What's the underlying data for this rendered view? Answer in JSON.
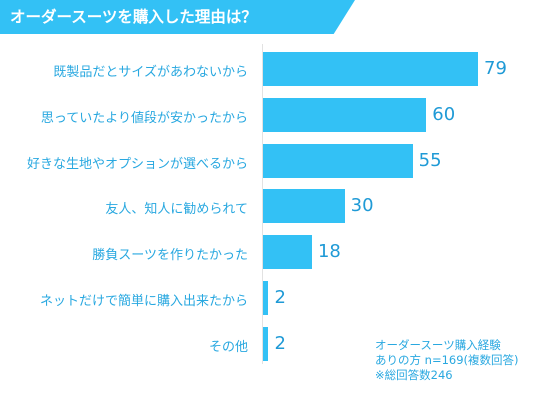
{
  "header": {
    "title": "オーダースーツを購入した理由は？"
  },
  "chart_data": {
    "type": "bar",
    "orientation": "horizontal",
    "categories": [
      "既製品だとサイズがあわないから",
      "思っていたより値段が安かったから",
      "好きな生地やオプションが選べるから",
      "友人、知人に勧められて",
      "勝負スーツを作りたかった",
      "ネットだけで簡単に購入出来たから",
      "その他"
    ],
    "values": [
      79,
      60,
      55,
      30,
      18,
      2,
      2
    ],
    "xlim": [
      0,
      85
    ],
    "color": "#33c1f5"
  },
  "notes": {
    "line1": "オーダースーツ購入経験",
    "line2": "ありの方 n=169(複数回答)",
    "line3": "※総回答数246"
  }
}
